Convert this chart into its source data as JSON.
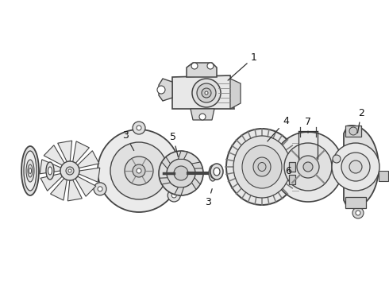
{
  "background_color": "#ffffff",
  "line_color": "#444444",
  "figsize": [
    4.9,
    3.6
  ],
  "dpi": 100,
  "xlim": [
    0,
    490
  ],
  "ylim": [
    0,
    360
  ]
}
